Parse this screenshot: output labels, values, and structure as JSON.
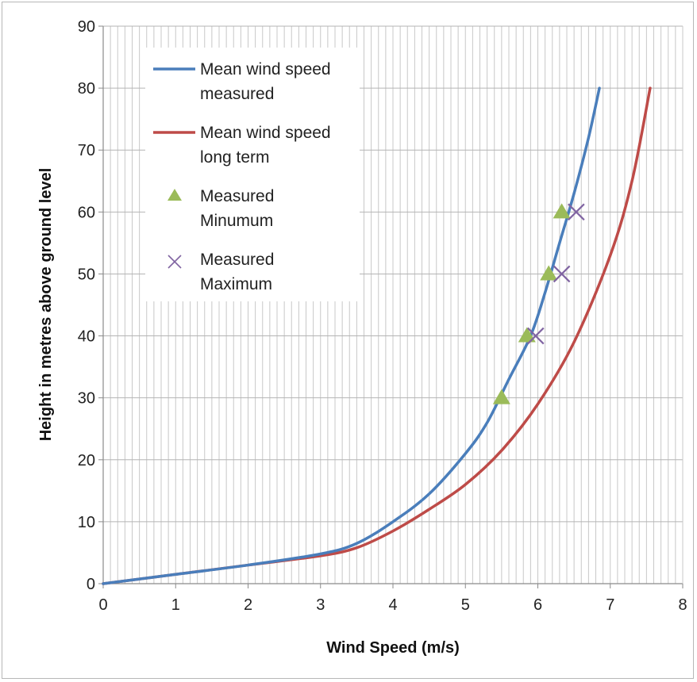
{
  "chart_data": {
    "type": "line",
    "xlabel": "Wind Speed (m/s)",
    "ylabel": "Height in metres above ground level",
    "xlim": [
      0,
      8
    ],
    "ylim": [
      0,
      90
    ],
    "x_ticks": [
      "0",
      "1",
      "2",
      "3",
      "4",
      "5",
      "6",
      "7",
      "8"
    ],
    "y_ticks": [
      "0",
      "10",
      "20",
      "30",
      "40",
      "50",
      "60",
      "70",
      "80",
      "90"
    ],
    "grid": "vertical minor gridlines every 0.1, horizontal major gridlines every 10",
    "legend_position": "top-left",
    "series": [
      {
        "name_lines": [
          "Mean wind speed",
          "measured"
        ],
        "kind": "line",
        "color": "#4a7ebb",
        "points": [
          [
            0,
            0
          ],
          [
            1,
            1.5
          ],
          [
            2,
            3
          ],
          [
            3,
            4.8
          ],
          [
            3.5,
            6.5
          ],
          [
            4,
            10
          ],
          [
            4.5,
            14.5
          ],
          [
            5,
            21
          ],
          [
            5.3,
            26
          ],
          [
            5.6,
            33
          ],
          [
            5.9,
            40
          ],
          [
            6.1,
            47
          ],
          [
            6.3,
            55
          ],
          [
            6.5,
            63
          ],
          [
            6.7,
            72
          ],
          [
            6.85,
            80
          ]
        ]
      },
      {
        "name_lines": [
          "Mean wind speed",
          "long term"
        ],
        "kind": "line",
        "color": "#be4b48",
        "points": [
          [
            0,
            0
          ],
          [
            1,
            1.5
          ],
          [
            2,
            3
          ],
          [
            3,
            4.5
          ],
          [
            3.5,
            5.8
          ],
          [
            4,
            8.5
          ],
          [
            4.5,
            12
          ],
          [
            5,
            16
          ],
          [
            5.5,
            21.5
          ],
          [
            6,
            29
          ],
          [
            6.5,
            39
          ],
          [
            7,
            53
          ],
          [
            7.3,
            65
          ],
          [
            7.55,
            80
          ]
        ]
      },
      {
        "name_lines": [
          "Measured",
          "Minumum"
        ],
        "kind": "triangle-marker",
        "color": "#9bbb59",
        "points": [
          [
            5.5,
            30
          ],
          [
            5.85,
            40
          ],
          [
            6.15,
            50
          ],
          [
            6.33,
            60
          ]
        ]
      },
      {
        "name_lines": [
          "Measured",
          "Maximum"
        ],
        "kind": "x-marker",
        "color": "#8064a2",
        "points": [
          [
            5.97,
            40
          ],
          [
            6.33,
            50
          ],
          [
            6.53,
            60
          ]
        ]
      }
    ]
  }
}
